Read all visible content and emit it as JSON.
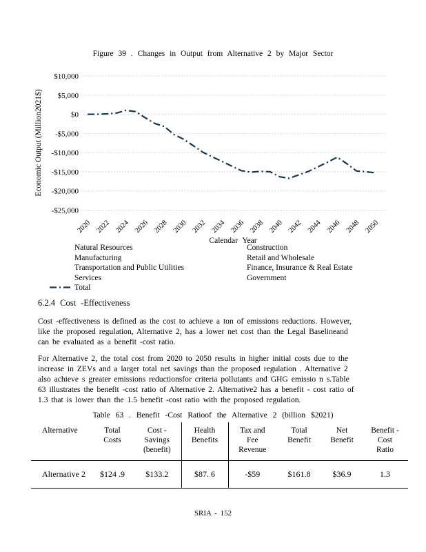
{
  "page": {
    "footer": "SRIA - 152"
  },
  "chart_data": {
    "type": "line",
    "title": "Figure 39 . Changes in Output from Alternative 2 by Major Sector",
    "xlabel": "Calendar Year",
    "ylabel": "Economic Output (Million2021$)",
    "grid": true,
    "legend_position": "bottom",
    "ylim": [
      -25000,
      10000
    ],
    "ytick_values": [
      10000,
      5000,
      0,
      -5000,
      -10000,
      -15000,
      -20000,
      -25000
    ],
    "ytick_labels": [
      "$10,000",
      "$5,000",
      "$0",
      "-$5,000",
      "-$10,000",
      "-$15,000",
      "-$20,000",
      "-$25,000"
    ],
    "x": [
      2020,
      2021,
      2022,
      2023,
      2024,
      2025,
      2026,
      2027,
      2028,
      2029,
      2030,
      2031,
      2032,
      2033,
      2034,
      2035,
      2036,
      2037,
      2038,
      2039,
      2040,
      2041,
      2042,
      2043,
      2044,
      2045,
      2046,
      2047,
      2048,
      2049,
      2050
    ],
    "x_tick_years": [
      2020,
      2022,
      2024,
      2026,
      2028,
      2030,
      2032,
      2034,
      2036,
      2038,
      2040,
      2042,
      2044,
      2046,
      2048,
      2050
    ],
    "series": [
      {
        "name": "Total",
        "color": "#17384a",
        "line_style": "dash-dot",
        "values": [
          0,
          0,
          100,
          300,
          1000,
          700,
          -900,
          -2400,
          -3200,
          -5300,
          -6500,
          -8200,
          -9900,
          -11100,
          -12300,
          -13500,
          -14700,
          -15100,
          -14900,
          -15000,
          -16300,
          -16700,
          -15800,
          -14900,
          -13700,
          -12500,
          -11200,
          -12900,
          -14800,
          -15000,
          -15300
        ]
      }
    ],
    "legend": {
      "left": [
        "Natural Resources",
        "Manufacturing",
        "Transportation and Public Utilities",
        "Services",
        "Total"
      ],
      "right": [
        "Construction",
        "Retail and Wholesale",
        "Finance, Insurance & Real Estate",
        "Government"
      ]
    }
  },
  "section": {
    "heading": "6.2.4   Cost -Effectiveness",
    "para1": "Cost -effectiveness is defined as the cost to achieve a ton of emissions reductions. However,\nlike the proposed regulation, Alternative 2, has a lower net cost than the Legal Baselineand\ncan be evaluated as a benefit -cost ratio.",
    "para2": "For Alternative 2, the total cost from 2020 to 2050 results in higher initial costs due to the\nincrease in ZEVs and a larger total net savings than the proposed regulation . Alternative 2\nalso achieve s greater emissions reductionsfor criteria pollutants and GHG emissio n s.Table\n63 illustrates the benefit -cost ratio of Alternative 2. Alternative2 has a benefit - cost ratio of\n1.3 that is lower than the 1.5 benefit -cost ratio with the proposed regulation."
  },
  "table63": {
    "caption": "Table 63 . Benefit -Cost Ratioof the Alternative 2 (billion $2021)",
    "columns": [
      {
        "label": "Alternative"
      },
      {
        "label": "Total\nCosts"
      },
      {
        "label": "Cost -\nSavings\n(benefit)"
      },
      {
        "label": "Health\nBenefits"
      },
      {
        "label": "Tax and\nFee\nRevenue"
      },
      {
        "label": "Total\nBenefit"
      },
      {
        "label": "Net\nBenefit"
      },
      {
        "label": "Benefit -\nCost\nRatio"
      }
    ],
    "row": {
      "cells": [
        "Alternative 2",
        "$124 .9",
        "$133.2",
        "$87. 6",
        "-$59",
        "$161.8",
        "$36.9",
        "1.3"
      ]
    }
  }
}
